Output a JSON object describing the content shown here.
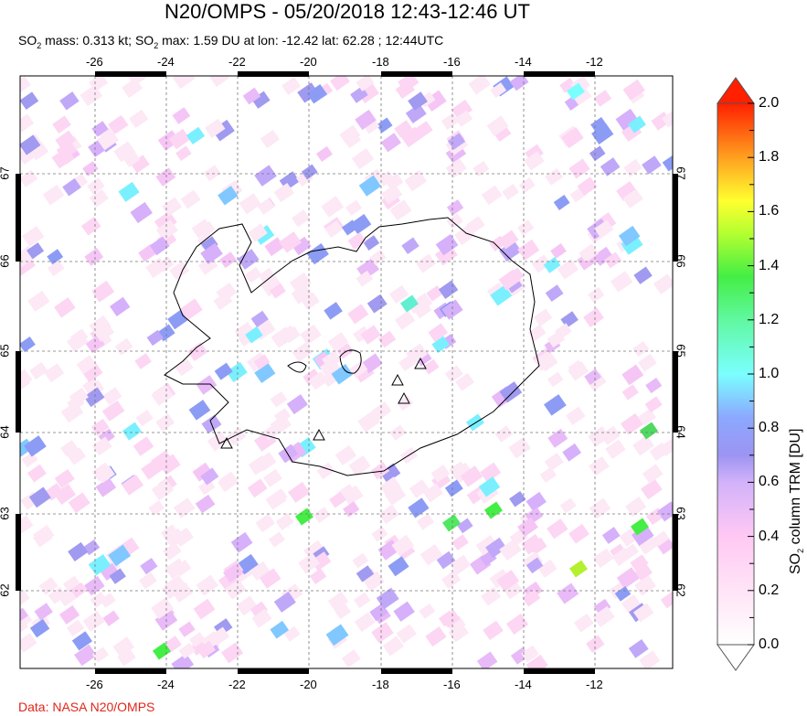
{
  "header": {
    "title": "N20/OMPS - 05/20/2018 12:43-12:46 UT",
    "subtitle_parts": [
      "SO",
      "2",
      " mass: 0.313 kt; SO",
      "2",
      " max: 1.59 DU at lon: -12.42 lat: 62.28 ; 12:44UTC"
    ]
  },
  "map": {
    "lon_ticks": [
      "-26",
      "-24",
      "-22",
      "-20",
      "-18",
      "-16",
      "-14",
      "-12"
    ],
    "lat_ticks": [
      "67",
      "66",
      "65",
      "64",
      "63",
      "62"
    ],
    "max_point": {
      "lon": -12.42,
      "lat": 62.28,
      "value": 1.59
    }
  },
  "colorbar": {
    "title_parts": [
      "SO",
      "2",
      " column TRM [DU]"
    ],
    "ticks": [
      "2.0",
      "1.8",
      "1.6",
      "1.4",
      "1.2",
      "1.0",
      "0.8",
      "0.6",
      "0.4",
      "0.2",
      "0.0"
    ],
    "range": [
      0.0,
      2.0
    ],
    "colors": [
      "#ffffff",
      "#ffd6f4",
      "#d2b2fa",
      "#8c8cf5",
      "#80c8ff",
      "#7affff",
      "#50ff9a",
      "#44ee44",
      "#b4ff30",
      "#ffff30",
      "#ffa020",
      "#ff2000"
    ]
  },
  "footer": {
    "credit": "Data: NASA N20/OMPS"
  }
}
